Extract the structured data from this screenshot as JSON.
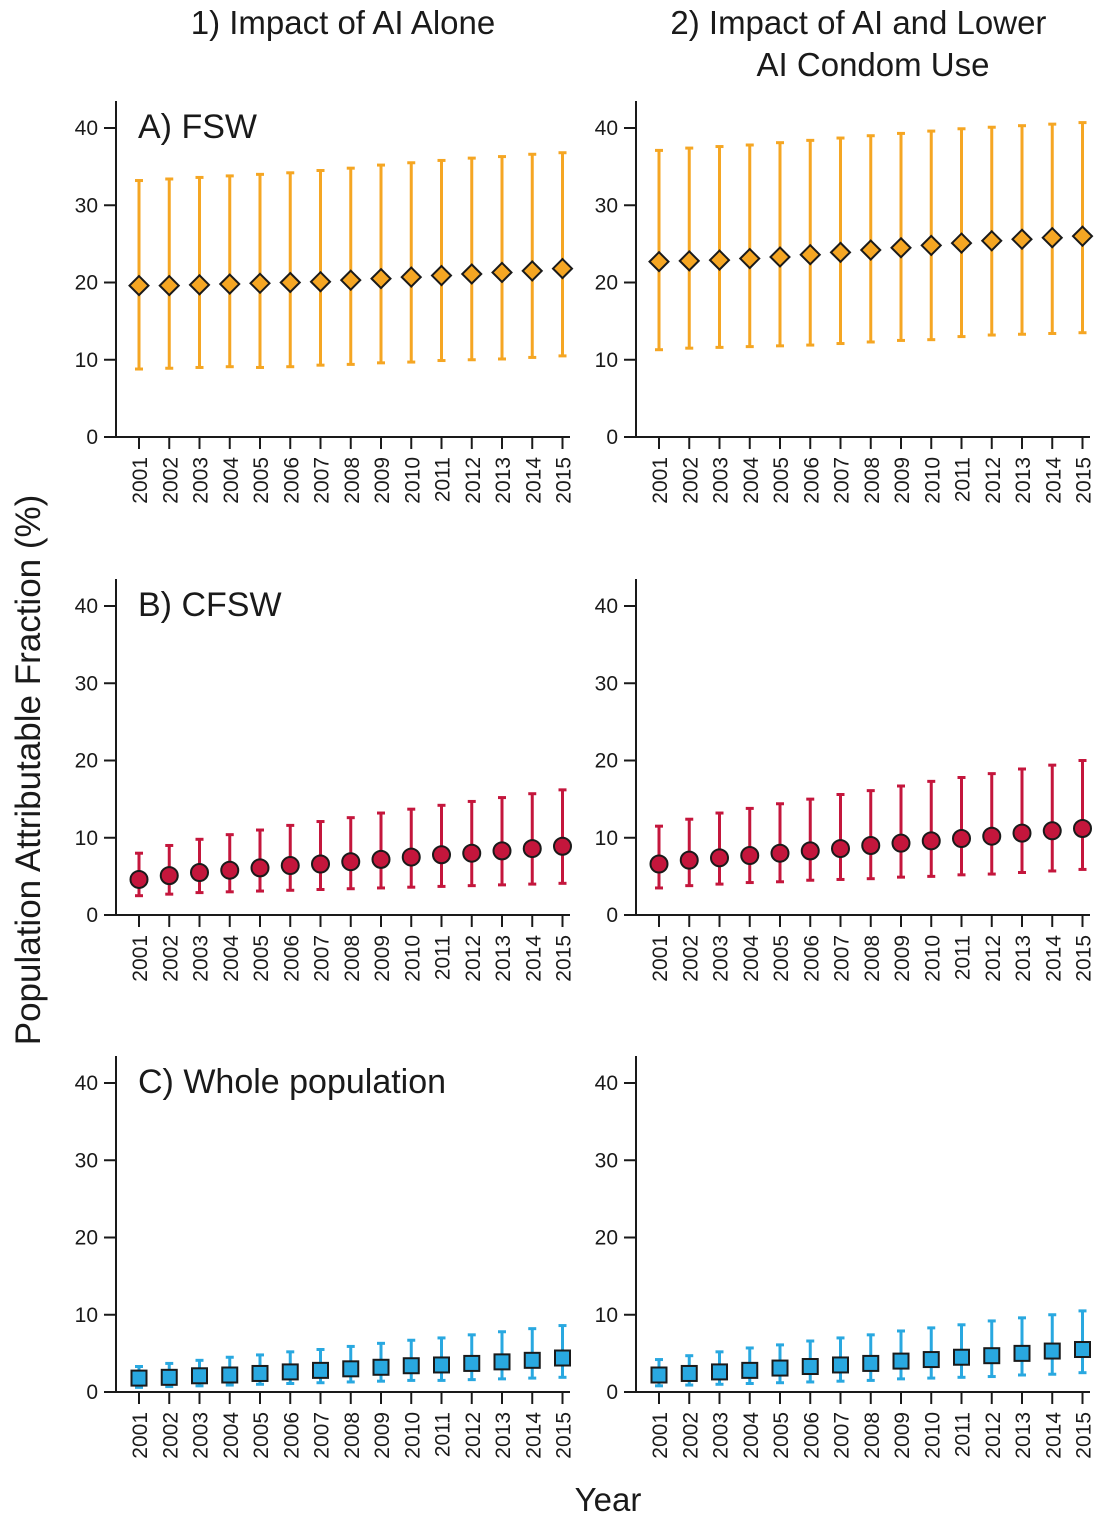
{
  "figure": {
    "column_titles": [
      "1) Impact of AI Alone",
      "2) Impact of AI and Lower|AI Condom Use"
    ],
    "y_axis_label": "Population Attributable Fraction (%)",
    "x_axis_label": "Year"
  },
  "chart_data": [
    {
      "type": "scatter",
      "id": "A1",
      "panel_label": "A) FSW",
      "column": "1) Impact of AI Alone",
      "marker": "diamond",
      "color": "#f5a623",
      "x": [
        2001,
        2002,
        2003,
        2004,
        2005,
        2006,
        2007,
        2008,
        2009,
        2010,
        2011,
        2012,
        2013,
        2014,
        2015
      ],
      "y": [
        19.6,
        19.6,
        19.7,
        19.8,
        19.9,
        20.0,
        20.1,
        20.3,
        20.5,
        20.7,
        20.9,
        21.1,
        21.3,
        21.5,
        21.8
      ],
      "y_lower": [
        8.8,
        8.9,
        9.0,
        9.1,
        9.0,
        9.1,
        9.3,
        9.4,
        9.6,
        9.7,
        9.9,
        10.0,
        10.1,
        10.3,
        10.5
      ],
      "y_upper": [
        33.2,
        33.4,
        33.6,
        33.8,
        34.0,
        34.2,
        34.5,
        34.8,
        35.2,
        35.5,
        35.8,
        36.1,
        36.3,
        36.6,
        36.8
      ],
      "ylim": [
        0,
        40
      ],
      "yticks": [
        0,
        10,
        20,
        30,
        40
      ]
    },
    {
      "type": "scatter",
      "id": "A2",
      "panel_label": "",
      "column": "2) Impact of AI and Lower AI Condom Use",
      "marker": "diamond",
      "color": "#f5a623",
      "x": [
        2001,
        2002,
        2003,
        2004,
        2005,
        2006,
        2007,
        2008,
        2009,
        2010,
        2011,
        2012,
        2013,
        2014,
        2015
      ],
      "y": [
        22.7,
        22.8,
        22.9,
        23.1,
        23.3,
        23.6,
        23.9,
        24.2,
        24.5,
        24.8,
        25.1,
        25.4,
        25.6,
        25.8,
        26.0
      ],
      "y_lower": [
        11.3,
        11.5,
        11.6,
        11.7,
        11.8,
        11.9,
        12.1,
        12.3,
        12.5,
        12.6,
        13.0,
        13.2,
        13.3,
        13.4,
        13.5
      ],
      "y_upper": [
        37.1,
        37.4,
        37.6,
        37.8,
        38.1,
        38.4,
        38.7,
        39.0,
        39.3,
        39.6,
        39.9,
        40.1,
        40.3,
        40.5,
        40.7
      ],
      "ylim": [
        0,
        40
      ],
      "yticks": [
        0,
        10,
        20,
        30,
        40
      ]
    },
    {
      "type": "scatter",
      "id": "B1",
      "panel_label": "B) CFSW",
      "column": "1) Impact of AI Alone",
      "marker": "circle",
      "color": "#c4163c",
      "x": [
        2001,
        2002,
        2003,
        2004,
        2005,
        2006,
        2007,
        2008,
        2009,
        2010,
        2011,
        2012,
        2013,
        2014,
        2015
      ],
      "y": [
        4.6,
        5.1,
        5.5,
        5.8,
        6.1,
        6.4,
        6.6,
        6.9,
        7.2,
        7.5,
        7.8,
        8.0,
        8.3,
        8.6,
        8.9
      ],
      "y_lower": [
        2.5,
        2.7,
        2.9,
        3.0,
        3.1,
        3.2,
        3.3,
        3.4,
        3.5,
        3.6,
        3.7,
        3.8,
        3.9,
        4.0,
        4.1
      ],
      "y_upper": [
        8.0,
        9.0,
        9.8,
        10.4,
        11.0,
        11.6,
        12.1,
        12.6,
        13.2,
        13.7,
        14.2,
        14.7,
        15.2,
        15.7,
        16.2
      ],
      "ylim": [
        0,
        40
      ],
      "yticks": [
        0,
        10,
        20,
        30,
        40
      ]
    },
    {
      "type": "scatter",
      "id": "B2",
      "panel_label": "",
      "column": "2) Impact of AI and Lower AI Condom Use",
      "marker": "circle",
      "color": "#c4163c",
      "x": [
        2001,
        2002,
        2003,
        2004,
        2005,
        2006,
        2007,
        2008,
        2009,
        2010,
        2011,
        2012,
        2013,
        2014,
        2015
      ],
      "y": [
        6.6,
        7.1,
        7.4,
        7.7,
        8.0,
        8.3,
        8.6,
        9.0,
        9.3,
        9.6,
        9.9,
        10.2,
        10.6,
        10.9,
        11.2
      ],
      "y_lower": [
        3.5,
        3.8,
        4.0,
        4.2,
        4.3,
        4.5,
        4.6,
        4.7,
        4.9,
        5.0,
        5.2,
        5.3,
        5.5,
        5.7,
        5.9
      ],
      "y_upper": [
        11.5,
        12.4,
        13.2,
        13.8,
        14.4,
        15.0,
        15.6,
        16.1,
        16.7,
        17.3,
        17.8,
        18.3,
        18.9,
        19.4,
        20.0
      ],
      "ylim": [
        0,
        40
      ],
      "yticks": [
        0,
        10,
        20,
        30,
        40
      ]
    },
    {
      "type": "scatter",
      "id": "C1",
      "panel_label": "C) Whole population",
      "column": "1) Impact of AI Alone",
      "marker": "square",
      "color": "#29a8e0",
      "x": [
        2001,
        2002,
        2003,
        2004,
        2005,
        2006,
        2007,
        2008,
        2009,
        2010,
        2011,
        2012,
        2013,
        2014,
        2015
      ],
      "y": [
        1.8,
        1.9,
        2.1,
        2.2,
        2.4,
        2.6,
        2.8,
        3.0,
        3.2,
        3.4,
        3.5,
        3.7,
        3.9,
        4.1,
        4.4
      ],
      "y_lower": [
        0.6,
        0.7,
        0.8,
        0.9,
        1.0,
        1.1,
        1.2,
        1.3,
        1.4,
        1.5,
        1.5,
        1.6,
        1.7,
        1.8,
        1.9
      ],
      "y_upper": [
        3.3,
        3.7,
        4.1,
        4.5,
        4.8,
        5.2,
        5.5,
        5.9,
        6.3,
        6.7,
        7.0,
        7.4,
        7.8,
        8.2,
        8.6
      ],
      "ylim": [
        0,
        40
      ],
      "yticks": [
        0,
        10,
        20,
        30,
        40
      ]
    },
    {
      "type": "scatter",
      "id": "C2",
      "panel_label": "",
      "column": "2) Impact of AI and Lower AI Condom Use",
      "marker": "square",
      "color": "#29a8e0",
      "x": [
        2001,
        2002,
        2003,
        2004,
        2005,
        2006,
        2007,
        2008,
        2009,
        2010,
        2011,
        2012,
        2013,
        2014,
        2015
      ],
      "y": [
        2.2,
        2.4,
        2.6,
        2.8,
        3.1,
        3.3,
        3.5,
        3.7,
        4.0,
        4.2,
        4.5,
        4.7,
        5.0,
        5.3,
        5.5
      ],
      "y_lower": [
        0.8,
        0.9,
        1.0,
        1.1,
        1.2,
        1.3,
        1.4,
        1.5,
        1.7,
        1.8,
        1.9,
        2.0,
        2.2,
        2.3,
        2.5
      ],
      "y_upper": [
        4.2,
        4.7,
        5.2,
        5.7,
        6.1,
        6.6,
        7.0,
        7.4,
        7.9,
        8.3,
        8.7,
        9.2,
        9.6,
        10.0,
        10.5
      ],
      "ylim": [
        0,
        40
      ],
      "yticks": [
        0,
        10,
        20,
        30,
        40
      ]
    }
  ]
}
